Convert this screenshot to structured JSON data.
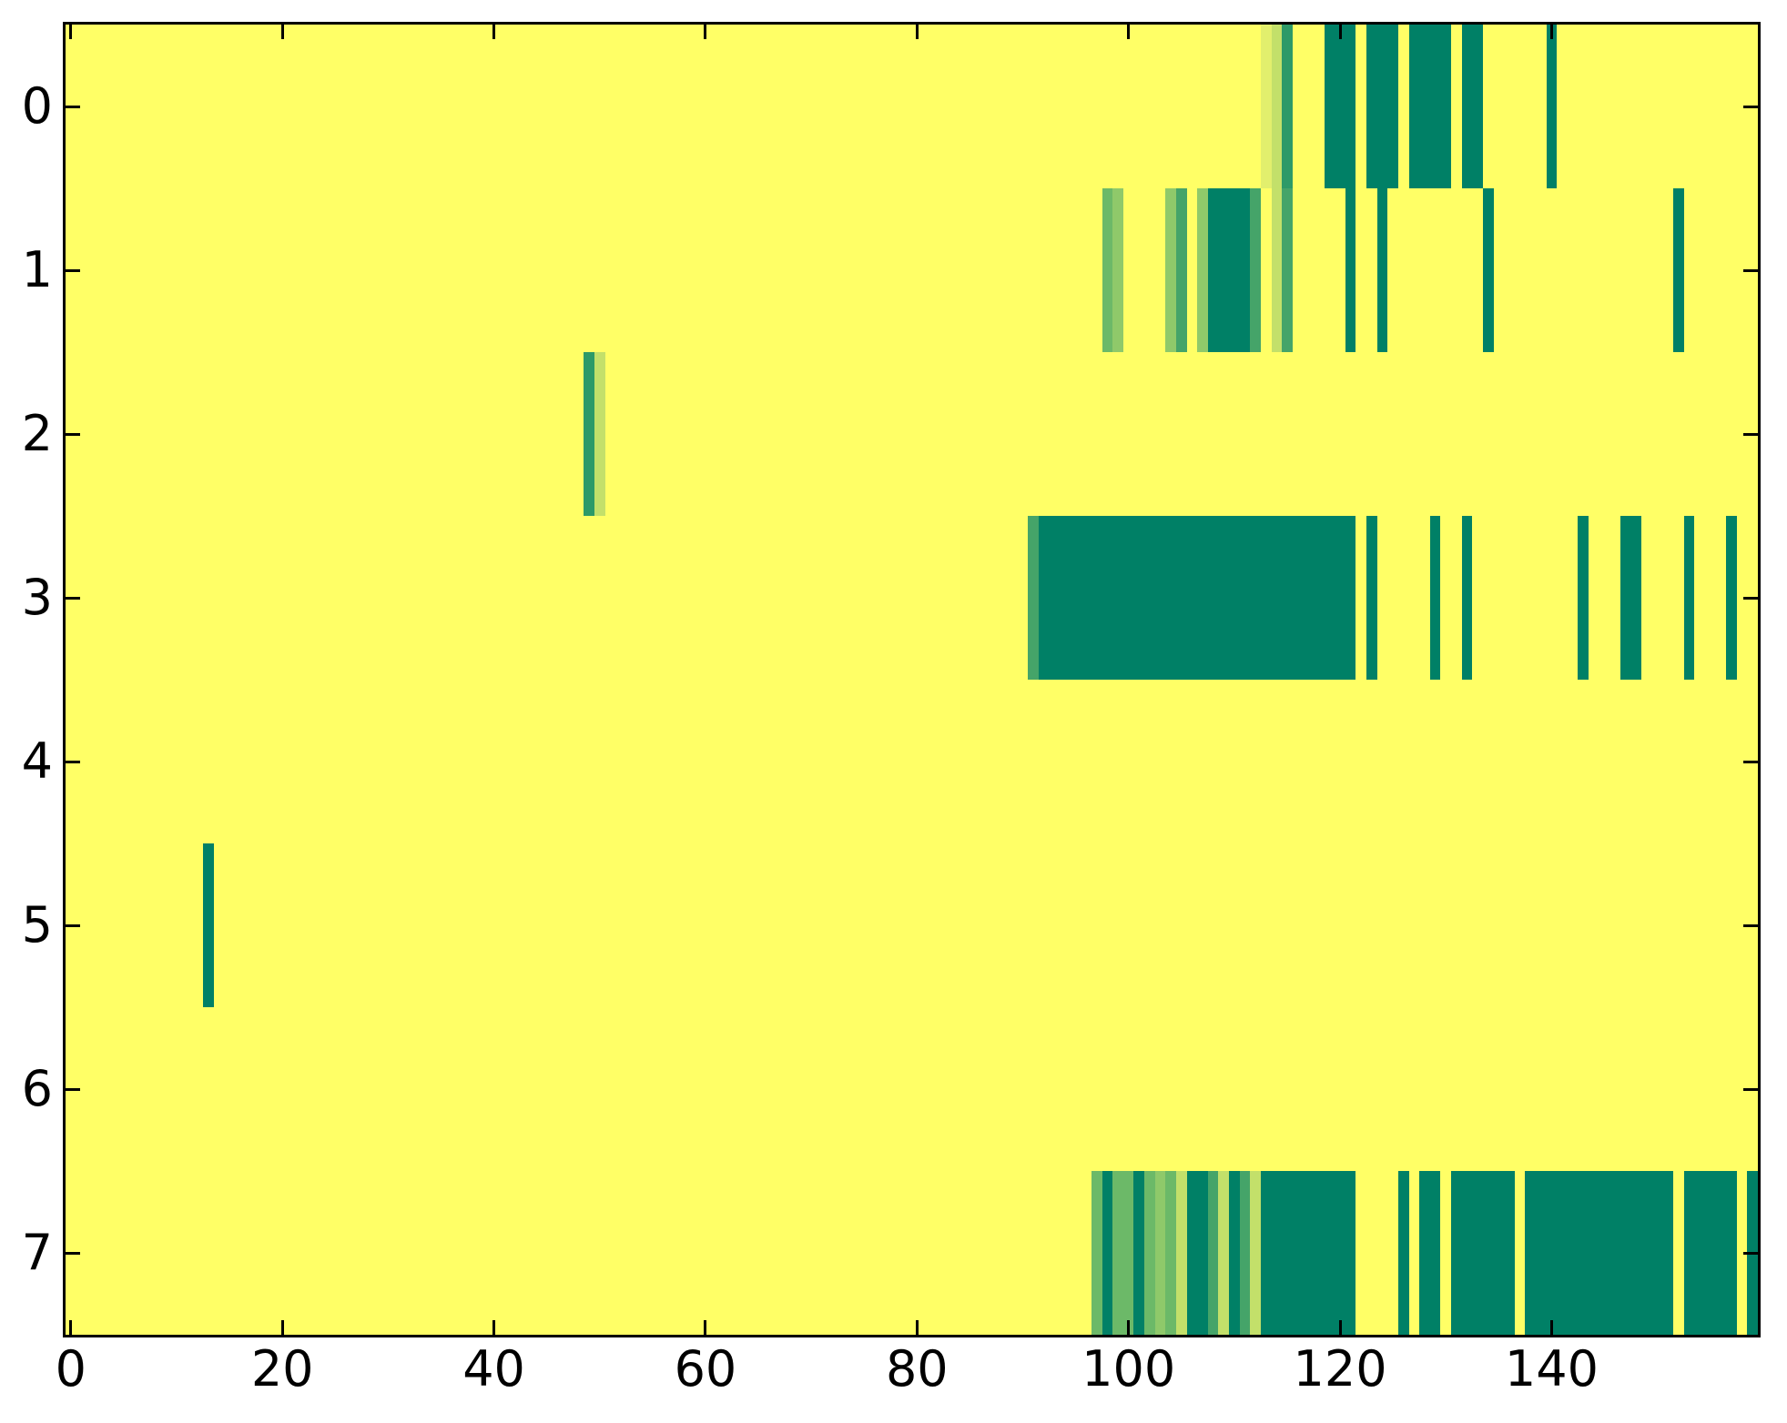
{
  "chart_data": {
    "type": "heatmap",
    "title": "",
    "xlabel": "",
    "ylabel": "",
    "colormap": "summer",
    "n_cols": 160,
    "n_rows": 8,
    "x_range": [
      -0.5,
      159.5
    ],
    "y_range": [
      -0.5,
      7.5
    ],
    "x_ticks": [
      0,
      20,
      40,
      60,
      80,
      100,
      120,
      140
    ],
    "y_ticks": [
      0,
      1,
      2,
      3,
      4,
      5,
      6,
      7
    ],
    "grid": false,
    "legend": false,
    "palette": {
      "bg": "#ffff66",
      "teal": "#008066",
      "g1": "#2d9a68",
      "g2": "#45a469",
      "g3": "#6cb968",
      "g4": "#8fc96a",
      "g5": "#c3e06a",
      "g6": "#e2ef6d"
    },
    "background_value_color": "#ffff66",
    "rows": [
      {
        "row": 0,
        "segments": [
          [
            113,
            113,
            "g6"
          ],
          [
            114,
            114,
            "g5"
          ],
          [
            115,
            115,
            "g1"
          ],
          [
            119,
            121,
            "teal"
          ],
          [
            123,
            125,
            "teal"
          ],
          [
            127,
            130,
            "teal"
          ],
          [
            132,
            133,
            "teal"
          ],
          [
            140,
            140,
            "teal"
          ]
        ]
      },
      {
        "row": 1,
        "segments": [
          [
            98,
            98,
            "g3"
          ],
          [
            99,
            99,
            "g4"
          ],
          [
            104,
            104,
            "g4"
          ],
          [
            105,
            105,
            "g2"
          ],
          [
            107,
            107,
            "g4"
          ],
          [
            108,
            111,
            "teal"
          ],
          [
            112,
            112,
            "g2"
          ],
          [
            114,
            114,
            "g5"
          ],
          [
            115,
            115,
            "g2"
          ],
          [
            121,
            121,
            "teal"
          ],
          [
            124,
            124,
            "teal"
          ],
          [
            134,
            134,
            "teal"
          ],
          [
            152,
            152,
            "teal"
          ]
        ]
      },
      {
        "row": 2,
        "segments": [
          [
            49,
            49,
            "g1"
          ],
          [
            50,
            50,
            "g5"
          ]
        ]
      },
      {
        "row": 3,
        "segments": [
          [
            91,
            91,
            "g2"
          ],
          [
            92,
            121,
            "teal"
          ],
          [
            123,
            123,
            "teal"
          ],
          [
            129,
            129,
            "teal"
          ],
          [
            132,
            132,
            "teal"
          ],
          [
            143,
            143,
            "teal"
          ],
          [
            147,
            148,
            "teal"
          ],
          [
            153,
            153,
            "teal"
          ],
          [
            157,
            157,
            "teal"
          ]
        ]
      },
      {
        "row": 4,
        "segments": []
      },
      {
        "row": 5,
        "segments": [
          [
            13,
            13,
            "teal"
          ]
        ]
      },
      {
        "row": 6,
        "segments": []
      },
      {
        "row": 7,
        "segments": [
          [
            97,
            97,
            "g3"
          ],
          [
            98,
            98,
            "teal"
          ],
          [
            99,
            100,
            "g3"
          ],
          [
            101,
            101,
            "teal"
          ],
          [
            102,
            102,
            "g3"
          ],
          [
            103,
            103,
            "g4"
          ],
          [
            104,
            104,
            "g3"
          ],
          [
            105,
            105,
            "g5"
          ],
          [
            106,
            107,
            "teal"
          ],
          [
            108,
            108,
            "g2"
          ],
          [
            109,
            109,
            "g5"
          ],
          [
            110,
            110,
            "teal"
          ],
          [
            111,
            111,
            "g2"
          ],
          [
            112,
            112,
            "g5"
          ],
          [
            113,
            121,
            "teal"
          ],
          [
            126,
            126,
            "teal"
          ],
          [
            128,
            129,
            "teal"
          ],
          [
            131,
            136,
            "teal"
          ],
          [
            138,
            151,
            "teal"
          ],
          [
            153,
            157,
            "teal"
          ],
          [
            159,
            159,
            "teal"
          ]
        ]
      }
    ],
    "layout_hints": {
      "tick_direction": "in",
      "ticks_on_all_sides": true,
      "plot_background": "#ffff66",
      "spine_color": "#000000"
    }
  }
}
